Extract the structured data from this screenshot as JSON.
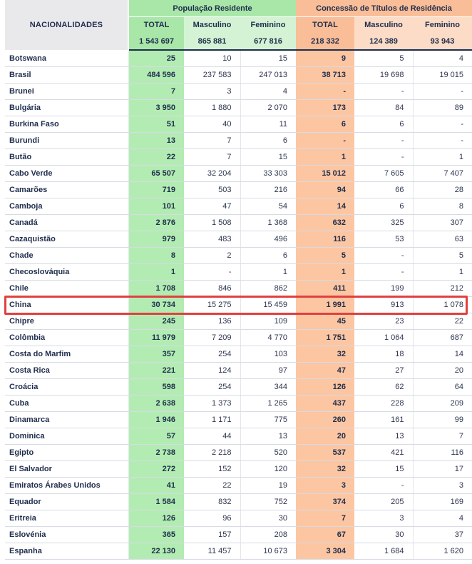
{
  "header": {
    "nationalities_label": "NACIONALIDADES",
    "group_population": "População Residente",
    "group_concession": "Concessão de Títulos de Residência",
    "sub_total": "TOTAL",
    "sub_male": "Masculino",
    "sub_female": "Feminino",
    "totals": {
      "pop_total": "1 543 697",
      "pop_male": "865 881",
      "pop_female": "677 816",
      "con_total": "218 332",
      "con_male": "124 389",
      "con_female": "93 943"
    }
  },
  "rows": [
    {
      "name": "Botswana",
      "pt": "25",
      "pm": "10",
      "pf": "15",
      "ct": "9",
      "cm": "5",
      "cf": "4"
    },
    {
      "name": "Brasil",
      "pt": "484 596",
      "pm": "237 583",
      "pf": "247 013",
      "ct": "38 713",
      "cm": "19 698",
      "cf": "19 015"
    },
    {
      "name": "Brunei",
      "pt": "7",
      "pm": "3",
      "pf": "4",
      "ct": "-",
      "cm": "-",
      "cf": "-"
    },
    {
      "name": "Bulgária",
      "pt": "3 950",
      "pm": "1 880",
      "pf": "2 070",
      "ct": "173",
      "cm": "84",
      "cf": "89"
    },
    {
      "name": "Burkina Faso",
      "pt": "51",
      "pm": "40",
      "pf": "11",
      "ct": "6",
      "cm": "6",
      "cf": "-"
    },
    {
      "name": "Burundi",
      "pt": "13",
      "pm": "7",
      "pf": "6",
      "ct": "-",
      "cm": "-",
      "cf": "-"
    },
    {
      "name": "Butão",
      "pt": "22",
      "pm": "7",
      "pf": "15",
      "ct": "1",
      "cm": "-",
      "cf": "1"
    },
    {
      "name": "Cabo Verde",
      "pt": "65 507",
      "pm": "32 204",
      "pf": "33 303",
      "ct": "15 012",
      "cm": "7 605",
      "cf": "7 407"
    },
    {
      "name": "Camarões",
      "pt": "719",
      "pm": "503",
      "pf": "216",
      "ct": "94",
      "cm": "66",
      "cf": "28"
    },
    {
      "name": "Camboja",
      "pt": "101",
      "pm": "47",
      "pf": "54",
      "ct": "14",
      "cm": "6",
      "cf": "8"
    },
    {
      "name": "Canadá",
      "pt": "2 876",
      "pm": "1 508",
      "pf": "1 368",
      "ct": "632",
      "cm": "325",
      "cf": "307"
    },
    {
      "name": "Cazaquistão",
      "pt": "979",
      "pm": "483",
      "pf": "496",
      "ct": "116",
      "cm": "53",
      "cf": "63"
    },
    {
      "name": "Chade",
      "pt": "8",
      "pm": "2",
      "pf": "6",
      "ct": "5",
      "cm": "-",
      "cf": "5"
    },
    {
      "name": "Checoslováquia",
      "pt": "1",
      "pm": "-",
      "pf": "1",
      "ct": "1",
      "cm": "-",
      "cf": "1"
    },
    {
      "name": "Chile",
      "pt": "1 708",
      "pm": "846",
      "pf": "862",
      "ct": "411",
      "cm": "199",
      "cf": "212"
    },
    {
      "name": "China",
      "pt": "30 734",
      "pm": "15 275",
      "pf": "15 459",
      "ct": "1 991",
      "cm": "913",
      "cf": "1 078"
    },
    {
      "name": "Chipre",
      "pt": "245",
      "pm": "136",
      "pf": "109",
      "ct": "45",
      "cm": "23",
      "cf": "22"
    },
    {
      "name": "Colômbia",
      "pt": "11 979",
      "pm": "7 209",
      "pf": "4 770",
      "ct": "1 751",
      "cm": "1 064",
      "cf": "687"
    },
    {
      "name": "Costa do Marfim",
      "pt": "357",
      "pm": "254",
      "pf": "103",
      "ct": "32",
      "cm": "18",
      "cf": "14"
    },
    {
      "name": "Costa Rica",
      "pt": "221",
      "pm": "124",
      "pf": "97",
      "ct": "47",
      "cm": "27",
      "cf": "20"
    },
    {
      "name": "Croácia",
      "pt": "598",
      "pm": "254",
      "pf": "344",
      "ct": "126",
      "cm": "62",
      "cf": "64"
    },
    {
      "name": "Cuba",
      "pt": "2 638",
      "pm": "1 373",
      "pf": "1 265",
      "ct": "437",
      "cm": "228",
      "cf": "209"
    },
    {
      "name": "Dinamarca",
      "pt": "1 946",
      "pm": "1 171",
      "pf": "775",
      "ct": "260",
      "cm": "161",
      "cf": "99"
    },
    {
      "name": "Dominica",
      "pt": "57",
      "pm": "44",
      "pf": "13",
      "ct": "20",
      "cm": "13",
      "cf": "7"
    },
    {
      "name": "Egipto",
      "pt": "2 738",
      "pm": "2 218",
      "pf": "520",
      "ct": "537",
      "cm": "421",
      "cf": "116"
    },
    {
      "name": "El Salvador",
      "pt": "272",
      "pm": "152",
      "pf": "120",
      "ct": "32",
      "cm": "15",
      "cf": "17"
    },
    {
      "name": "Emiratos Árabes Unidos",
      "pt": "41",
      "pm": "22",
      "pf": "19",
      "ct": "3",
      "cm": "-",
      "cf": "3"
    },
    {
      "name": "Equador",
      "pt": "1 584",
      "pm": "832",
      "pf": "752",
      "ct": "374",
      "cm": "205",
      "cf": "169"
    },
    {
      "name": "Eritreia",
      "pt": "126",
      "pm": "96",
      "pf": "30",
      "ct": "7",
      "cm": "3",
      "cf": "4"
    },
    {
      "name": "Eslovénia",
      "pt": "365",
      "pm": "157",
      "pf": "208",
      "ct": "67",
      "cm": "30",
      "cf": "37"
    },
    {
      "name": "Espanha",
      "pt": "22 130",
      "pm": "11 457",
      "pf": "10 673",
      "ct": "3 304",
      "cm": "1 684",
      "cf": "1 620"
    }
  ],
  "highlighted_row": "China",
  "colors": {
    "population_header": "#a9e7a9",
    "concession_header": "#f9be98",
    "highlight_border": "#e0403f",
    "text": "#1f2d4d"
  }
}
